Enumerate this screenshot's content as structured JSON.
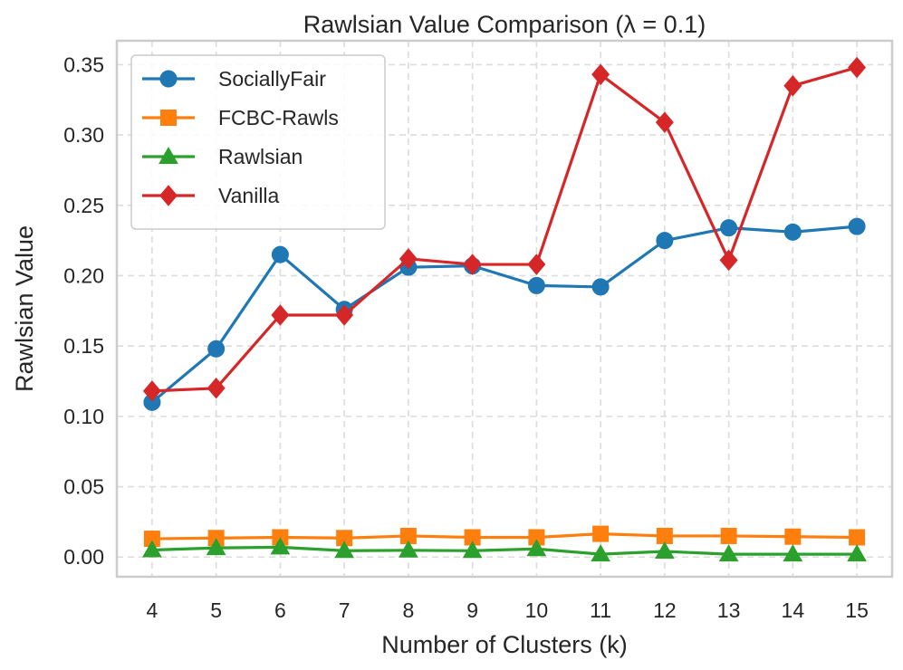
{
  "chart_data": {
    "type": "line",
    "title": "Rawlsian Value Comparison (λ = 0.1)",
    "xlabel": "Number of Clusters (k)",
    "ylabel": "Rawlsian Value",
    "x": [
      4,
      5,
      6,
      7,
      8,
      9,
      10,
      11,
      12,
      13,
      14,
      15
    ],
    "xlim": [
      3.45,
      15.55
    ],
    "ylim": [
      -0.014,
      0.367
    ],
    "yticks": [
      0.0,
      0.05,
      0.1,
      0.15,
      0.2,
      0.25,
      0.3,
      0.35
    ],
    "ytick_labels": [
      "0.00",
      "0.05",
      "0.10",
      "0.15",
      "0.20",
      "0.25",
      "0.30",
      "0.35"
    ],
    "xtick_labels": [
      "4",
      "5",
      "6",
      "7",
      "8",
      "9",
      "10",
      "11",
      "12",
      "13",
      "14",
      "15"
    ],
    "grid": true,
    "legend_position": "top-left",
    "series": [
      {
        "name": "SociallyFair",
        "color": "#1f77b4",
        "marker": "circle",
        "values": [
          0.11,
          0.148,
          0.215,
          0.176,
          0.206,
          0.207,
          0.193,
          0.192,
          0.225,
          0.234,
          0.231,
          0.235
        ]
      },
      {
        "name": "FCBC-Rawls",
        "color": "#ff7f0e",
        "marker": "square",
        "values": [
          0.013,
          0.0135,
          0.014,
          0.0135,
          0.015,
          0.014,
          0.014,
          0.0165,
          0.015,
          0.015,
          0.0145,
          0.014
        ]
      },
      {
        "name": "Rawlsian",
        "color": "#2ca02c",
        "marker": "triangle",
        "values": [
          0.005,
          0.0065,
          0.007,
          0.0045,
          0.0048,
          0.0045,
          0.0058,
          0.002,
          0.004,
          0.002,
          0.002,
          0.002
        ]
      },
      {
        "name": "Vanilla",
        "color": "#d62728",
        "marker": "diamond",
        "values": [
          0.118,
          0.12,
          0.172,
          0.172,
          0.212,
          0.208,
          0.208,
          0.343,
          0.309,
          0.211,
          0.335,
          0.348
        ]
      }
    ]
  }
}
